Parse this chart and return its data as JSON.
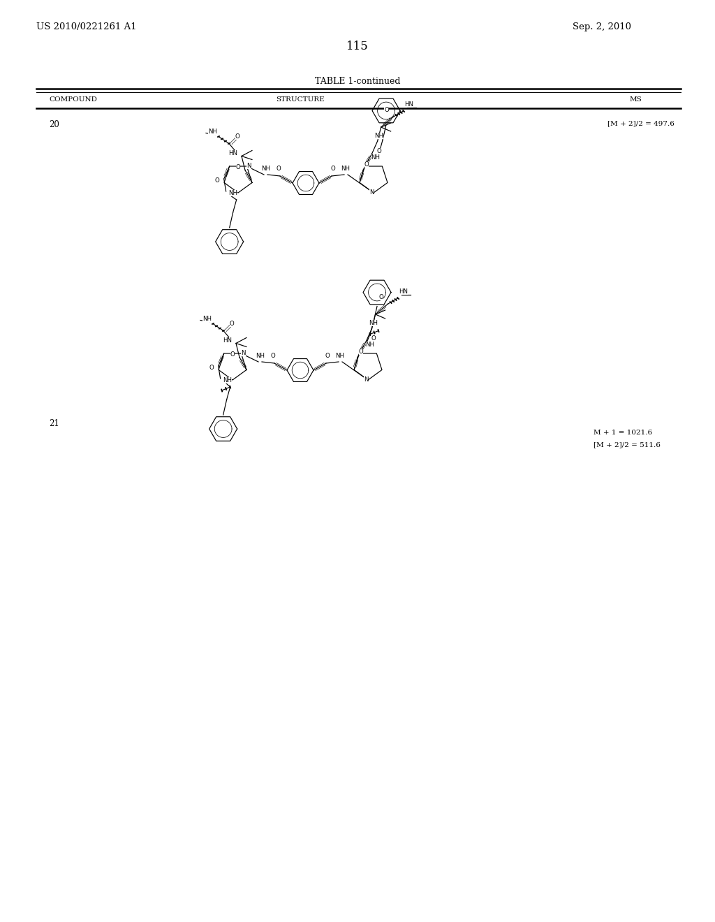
{
  "page_number": "115",
  "patent_number": "US 2010/0221261 A1",
  "patent_date": "Sep. 2, 2010",
  "table_title": "TABLE 1-continued",
  "col_headers": [
    "COMPOUND",
    "STRUCTURE",
    "MS"
  ],
  "background_color": "#ffffff",
  "text_color": "#000000",
  "compound_20_number": "20",
  "compound_20_ms": "[M + 2]/2 = 497.6",
  "compound_21_number": "21",
  "compound_21_ms1": "M + 1 = 1021.6",
  "compound_21_ms2": "[M + 2]/2 = 511.6"
}
